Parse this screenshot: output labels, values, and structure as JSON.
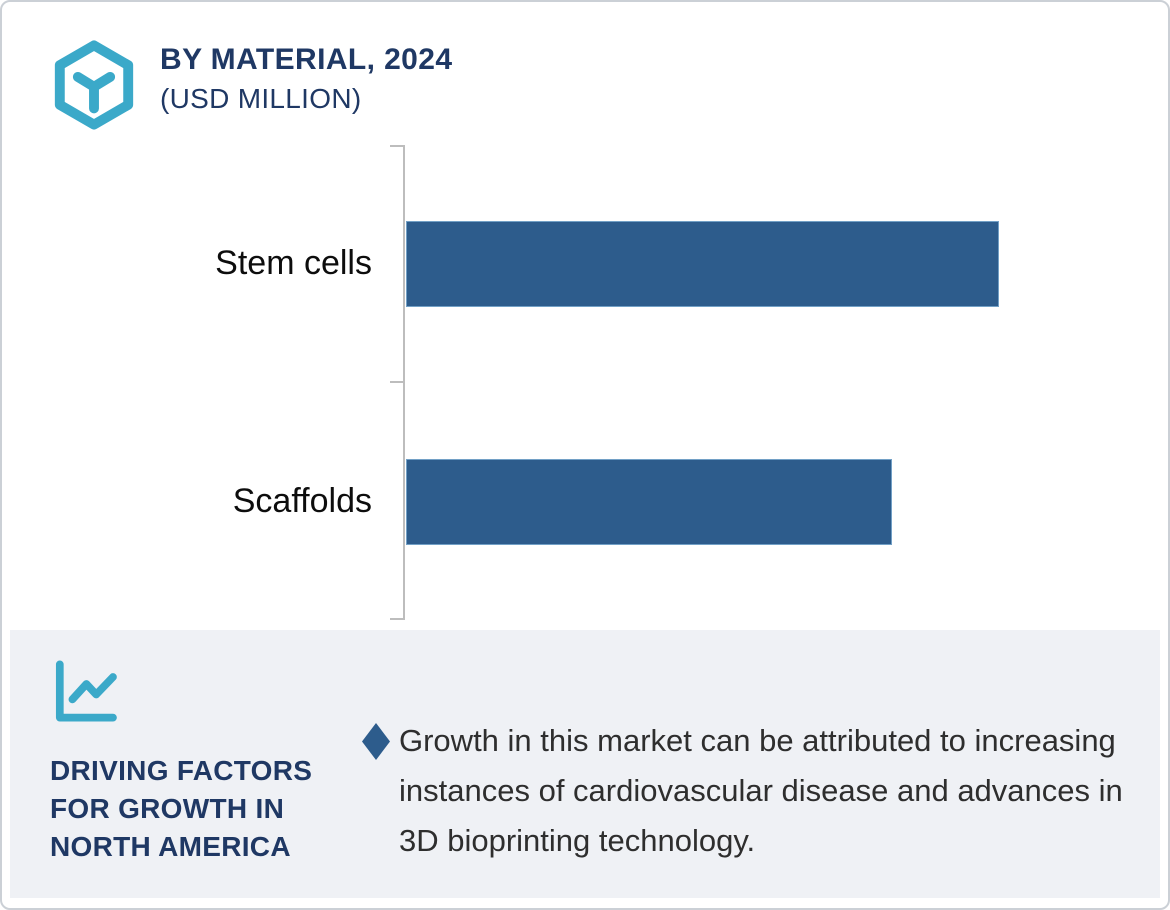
{
  "header": {
    "title": "BY MATERIAL, 2024",
    "subtitle": "(USD MILLION)",
    "icon": "hexagon-cube-icon"
  },
  "chart_data": {
    "type": "bar",
    "orientation": "horizontal",
    "title": "BY MATERIAL, 2024",
    "subtitle": "(USD MILLION)",
    "units": "USD Million",
    "categories": [
      "Stem cells",
      "Scaffolds"
    ],
    "values": [
      100,
      82
    ],
    "values_note": "no numeric value labels shown in figure; values are relative bar lengths with Stem cells = 100",
    "value_labels_shown": false,
    "grid": false,
    "legend": false,
    "bar_color": "#2d5c8c",
    "axis_color": "#bdbdbd"
  },
  "footer": {
    "icon": "line-chart-icon",
    "heading_lines": [
      "DRIVING FACTORS",
      "FOR GROWTH IN",
      "NORTH AMERICA"
    ],
    "bullet_marker": "diamond",
    "bullet_text": "Growth in this market can be attributed to increasing instances of cardiovascular disease and advances in 3D bioprinting technology."
  },
  "colors": {
    "navy": "#1f3864",
    "teal": "#3ba9c9",
    "bar": "#2d5c8c",
    "panel_bg": "#eff1f5",
    "axis": "#bdbdbd",
    "body_text": "#2e2e2e",
    "card_border": "#cbd0d6"
  }
}
